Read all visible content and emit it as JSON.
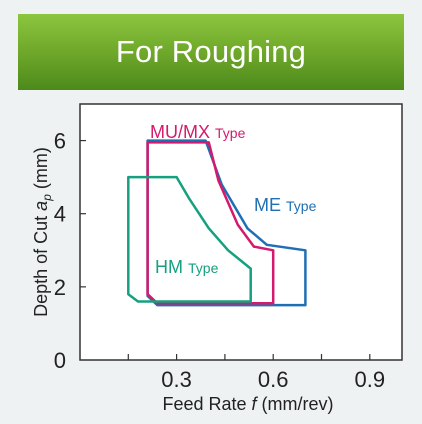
{
  "banner": {
    "title": "For Roughing"
  },
  "chart_data": {
    "type": "area",
    "xlabel": {
      "pre": "Feed Rate ",
      "var": "f",
      "post": " (mm/rev)"
    },
    "ylabel": {
      "pre": "Depth of Cut ",
      "var": "a",
      "sub": "p",
      "post": " (mm)"
    },
    "xlim": [
      0,
      1.0
    ],
    "ylim": [
      0,
      7
    ],
    "xticks": [
      0.3,
      0.6,
      0.9
    ],
    "xtick_labels": [
      "0.3",
      "0.6",
      "0.9"
    ],
    "yticks": [
      0,
      2,
      4,
      6
    ],
    "ytick_labels": [
      "0",
      "2",
      "4",
      "6"
    ],
    "x_minor_ticks": [
      0.15,
      0.3,
      0.45,
      0.6,
      0.75,
      0.9
    ],
    "series": [
      {
        "key": "me",
        "label_main": "ME",
        "label_sub": "Type",
        "color": "#1e6fb3",
        "points": [
          [
            0.21,
            6.0
          ],
          [
            0.39,
            6.0
          ],
          [
            0.44,
            4.8
          ],
          [
            0.52,
            3.6
          ],
          [
            0.58,
            3.15
          ],
          [
            0.7,
            3.0
          ],
          [
            0.7,
            1.5
          ],
          [
            0.24,
            1.5
          ],
          [
            0.21,
            1.75
          ],
          [
            0.21,
            6.0
          ]
        ]
      },
      {
        "key": "mumx",
        "label_main": "MU/MX",
        "label_sub": "Type",
        "color": "#d41a6c",
        "points": [
          [
            0.21,
            5.95
          ],
          [
            0.4,
            5.95
          ],
          [
            0.43,
            4.9
          ],
          [
            0.49,
            3.7
          ],
          [
            0.54,
            3.1
          ],
          [
            0.6,
            3.0
          ],
          [
            0.6,
            1.55
          ],
          [
            0.24,
            1.55
          ],
          [
            0.21,
            1.8
          ],
          [
            0.21,
            5.95
          ]
        ]
      },
      {
        "key": "hm",
        "label_main": "HM",
        "label_sub": "Type",
        "color": "#16a07f",
        "points": [
          [
            0.15,
            5.0
          ],
          [
            0.3,
            5.0
          ],
          [
            0.34,
            4.4
          ],
          [
            0.4,
            3.6
          ],
          [
            0.46,
            3.0
          ],
          [
            0.53,
            2.5
          ],
          [
            0.53,
            1.6
          ],
          [
            0.18,
            1.6
          ],
          [
            0.15,
            1.8
          ],
          [
            0.15,
            5.0
          ]
        ]
      }
    ]
  }
}
